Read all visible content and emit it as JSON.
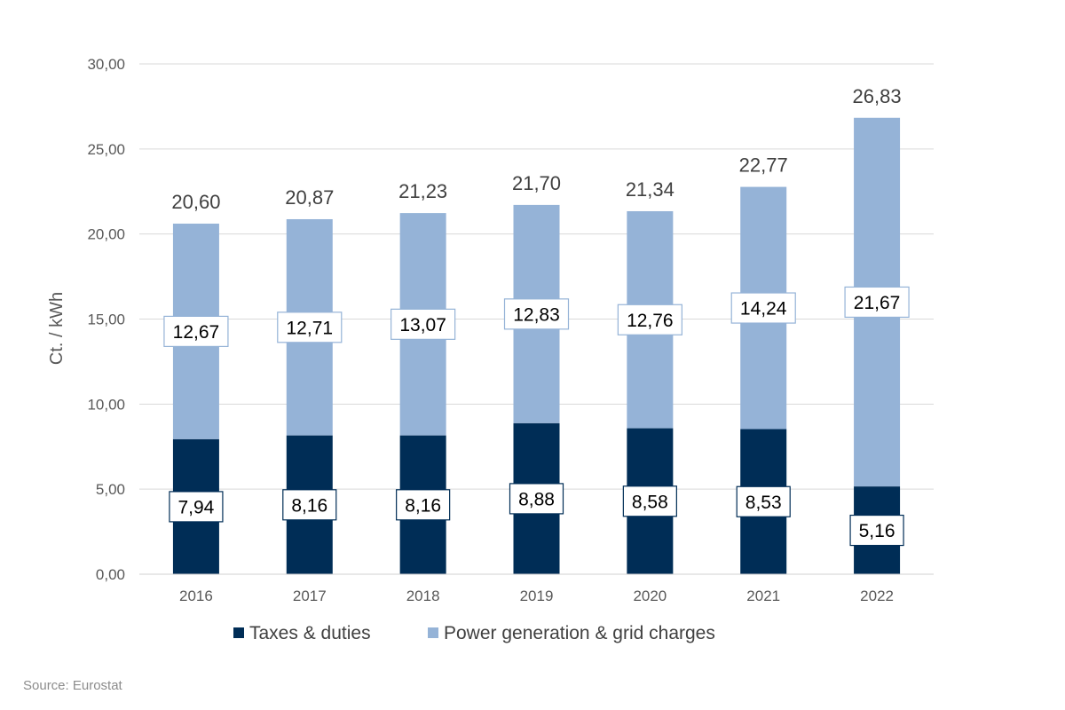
{
  "chart_data": {
    "type": "bar",
    "stacked": true,
    "categories": [
      "2016",
      "2017",
      "2018",
      "2019",
      "2020",
      "2021",
      "2022"
    ],
    "series": [
      {
        "name": "Taxes & duties",
        "values": [
          7.94,
          8.16,
          8.16,
          8.88,
          8.58,
          8.53,
          5.16
        ],
        "labels": [
          "7,94",
          "8,16",
          "8,16",
          "8,88",
          "8,58",
          "8,53",
          "5,16"
        ],
        "color": "#002D56"
      },
      {
        "name": "Power generation & grid charges",
        "values": [
          12.67,
          12.71,
          13.07,
          12.83,
          12.76,
          14.24,
          21.67
        ],
        "labels": [
          "12,67",
          "12,71",
          "13,07",
          "12,83",
          "12,76",
          "14,24",
          "21,67"
        ],
        "color": "#95B3D7"
      }
    ],
    "totals": [
      20.6,
      20.87,
      21.23,
      21.7,
      21.34,
      22.77,
      26.83
    ],
    "total_labels": [
      "20,60",
      "20,87",
      "21,23",
      "21,70",
      "21,34",
      "22,77",
      "26,83"
    ],
    "ylabel": "Ct. / kWh",
    "ylim": [
      0,
      30
    ],
    "yticks": [
      0,
      5,
      10,
      15,
      20,
      25,
      30
    ],
    "ytick_labels": [
      "0,00",
      "5,00",
      "10,00",
      "15,00",
      "20,00",
      "25,00",
      "30,00"
    ],
    "grid": true,
    "legend": "bottom"
  },
  "source": "Source: Eurostat"
}
